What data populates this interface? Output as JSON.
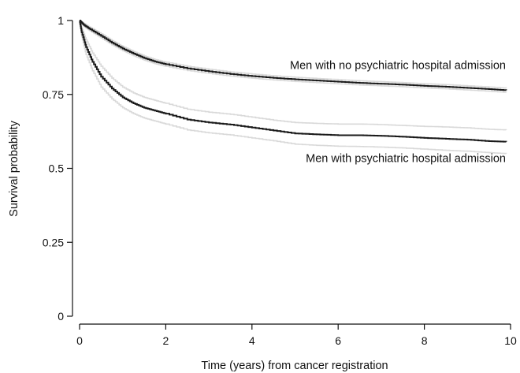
{
  "chart_data": {
    "type": "line",
    "title": "",
    "xlabel": "Time (years) from cancer registration",
    "ylabel": "Survival probability",
    "xlim": [
      0,
      10
    ],
    "ylim": [
      0,
      1
    ],
    "x_ticks": [
      0,
      2,
      4,
      6,
      8,
      10
    ],
    "x_tick_labels": [
      "0",
      "2",
      "4",
      "6",
      "8",
      "10"
    ],
    "y_ticks": [
      0,
      0.25,
      0.5,
      0.75,
      1
    ],
    "y_tick_labels": [
      "0",
      "0.25",
      "0.5",
      "0.75",
      "1"
    ],
    "grid": false,
    "colors": {
      "line": "#1a1a1a",
      "ci": "#d9d9d9",
      "axis": "#111111"
    },
    "annotations": [
      {
        "text": "Men with no psychiatric hospital admission",
        "x": 10,
        "y": 0.85,
        "anchor": "end"
      },
      {
        "text": "Men with psychiatric hospital admission",
        "x": 10,
        "y": 0.535,
        "anchor": "end"
      }
    ],
    "series": [
      {
        "name": "Men with no psychiatric hospital admission",
        "x": [
          0,
          0.1,
          0.25,
          0.5,
          0.75,
          1,
          1.25,
          1.5,
          1.75,
          2,
          2.5,
          3,
          3.5,
          4,
          4.5,
          5,
          5.5,
          6,
          6.5,
          7,
          7.5,
          8,
          8.5,
          9,
          9.5,
          9.9
        ],
        "y": [
          1,
          0.985,
          0.97,
          0.948,
          0.925,
          0.905,
          0.888,
          0.873,
          0.861,
          0.852,
          0.838,
          0.828,
          0.819,
          0.812,
          0.806,
          0.801,
          0.797,
          0.793,
          0.789,
          0.786,
          0.783,
          0.779,
          0.776,
          0.772,
          0.768,
          0.764
        ],
        "ci_upper": [
          1,
          0.99,
          0.976,
          0.955,
          0.932,
          0.912,
          0.895,
          0.88,
          0.868,
          0.859,
          0.845,
          0.835,
          0.826,
          0.819,
          0.813,
          0.808,
          0.804,
          0.8,
          0.796,
          0.793,
          0.79,
          0.786,
          0.783,
          0.779,
          0.775,
          0.771
        ],
        "ci_lower": [
          1,
          0.98,
          0.964,
          0.941,
          0.918,
          0.898,
          0.881,
          0.866,
          0.854,
          0.845,
          0.831,
          0.821,
          0.812,
          0.805,
          0.799,
          0.794,
          0.79,
          0.786,
          0.782,
          0.779,
          0.776,
          0.772,
          0.769,
          0.765,
          0.761,
          0.757
        ]
      },
      {
        "name": "Men with psychiatric hospital admission",
        "x": [
          0,
          0.05,
          0.15,
          0.3,
          0.5,
          0.75,
          1,
          1.25,
          1.5,
          1.75,
          2,
          2.5,
          3,
          3.5,
          4,
          4.5,
          5,
          5.5,
          6,
          6.5,
          7,
          7.5,
          8,
          8.5,
          9,
          9.5,
          9.9
        ],
        "y": [
          1,
          0.96,
          0.91,
          0.86,
          0.81,
          0.77,
          0.74,
          0.72,
          0.705,
          0.695,
          0.685,
          0.665,
          0.655,
          0.648,
          0.638,
          0.628,
          0.618,
          0.615,
          0.612,
          0.612,
          0.61,
          0.607,
          0.603,
          0.6,
          0.597,
          0.592,
          0.59
        ],
        "ci_upper": [
          1,
          0.975,
          0.935,
          0.89,
          0.845,
          0.805,
          0.775,
          0.755,
          0.74,
          0.73,
          0.72,
          0.7,
          0.69,
          0.683,
          0.673,
          0.663,
          0.655,
          0.652,
          0.65,
          0.65,
          0.648,
          0.645,
          0.642,
          0.64,
          0.637,
          0.632,
          0.63
        ],
        "ci_lower": [
          1,
          0.945,
          0.885,
          0.83,
          0.775,
          0.735,
          0.705,
          0.685,
          0.67,
          0.66,
          0.65,
          0.63,
          0.62,
          0.613,
          0.603,
          0.593,
          0.582,
          0.578,
          0.575,
          0.574,
          0.572,
          0.569,
          0.565,
          0.561,
          0.558,
          0.553,
          0.55
        ]
      }
    ]
  }
}
